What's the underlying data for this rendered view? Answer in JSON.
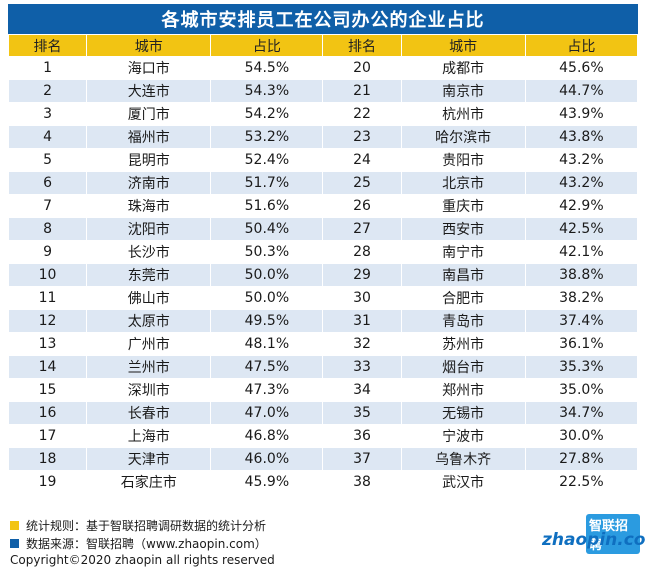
{
  "title": "各城市安排员工在公司办公的企业占比",
  "headers": {
    "rank": "排名",
    "city": "城市",
    "share": "占比"
  },
  "chart_data": {
    "type": "table",
    "title": "各城市安排员工在公司办公的企业占比",
    "columns": [
      "排名",
      "城市",
      "占比"
    ],
    "left_rows": [
      {
        "rank": "1",
        "city": "海口市",
        "share": "54.5%"
      },
      {
        "rank": "2",
        "city": "大连市",
        "share": "54.3%"
      },
      {
        "rank": "3",
        "city": "厦门市",
        "share": "54.2%"
      },
      {
        "rank": "4",
        "city": "福州市",
        "share": "53.2%"
      },
      {
        "rank": "5",
        "city": "昆明市",
        "share": "52.4%"
      },
      {
        "rank": "6",
        "city": "济南市",
        "share": "51.7%"
      },
      {
        "rank": "7",
        "city": "珠海市",
        "share": "51.6%"
      },
      {
        "rank": "8",
        "city": "沈阳市",
        "share": "50.4%"
      },
      {
        "rank": "9",
        "city": "长沙市",
        "share": "50.3%"
      },
      {
        "rank": "10",
        "city": "东莞市",
        "share": "50.0%"
      },
      {
        "rank": "11",
        "city": "佛山市",
        "share": "50.0%"
      },
      {
        "rank": "12",
        "city": "太原市",
        "share": "49.5%"
      },
      {
        "rank": "13",
        "city": "广州市",
        "share": "48.1%"
      },
      {
        "rank": "14",
        "city": "兰州市",
        "share": "47.5%"
      },
      {
        "rank": "15",
        "city": "深圳市",
        "share": "47.3%"
      },
      {
        "rank": "16",
        "city": "长春市",
        "share": "47.0%"
      },
      {
        "rank": "17",
        "city": "上海市",
        "share": "46.8%"
      },
      {
        "rank": "18",
        "city": "天津市",
        "share": "46.0%"
      },
      {
        "rank": "19",
        "city": "石家庄市",
        "share": "45.9%"
      }
    ],
    "right_rows": [
      {
        "rank": "20",
        "city": "成都市",
        "share": "45.6%"
      },
      {
        "rank": "21",
        "city": "南京市",
        "share": "44.7%"
      },
      {
        "rank": "22",
        "city": "杭州市",
        "share": "43.9%"
      },
      {
        "rank": "23",
        "city": "哈尔滨市",
        "share": "43.8%"
      },
      {
        "rank": "24",
        "city": "贵阳市",
        "share": "43.2%"
      },
      {
        "rank": "25",
        "city": "北京市",
        "share": "43.2%"
      },
      {
        "rank": "26",
        "city": "重庆市",
        "share": "42.9%"
      },
      {
        "rank": "27",
        "city": "西安市",
        "share": "42.5%"
      },
      {
        "rank": "28",
        "city": "南宁市",
        "share": "42.1%"
      },
      {
        "rank": "29",
        "city": "南昌市",
        "share": "38.8%"
      },
      {
        "rank": "30",
        "city": "合肥市",
        "share": "38.2%"
      },
      {
        "rank": "31",
        "city": "青岛市",
        "share": "37.4%"
      },
      {
        "rank": "32",
        "city": "苏州市",
        "share": "36.1%"
      },
      {
        "rank": "33",
        "city": "烟台市",
        "share": "35.3%"
      },
      {
        "rank": "34",
        "city": "郑州市",
        "share": "35.0%"
      },
      {
        "rank": "35",
        "city": "无锡市",
        "share": "34.7%"
      },
      {
        "rank": "36",
        "city": "宁波市",
        "share": "30.0%"
      },
      {
        "rank": "37",
        "city": "乌鲁木齐",
        "share": "27.8%"
      },
      {
        "rank": "38",
        "city": "武汉市",
        "share": "22.5%"
      }
    ]
  },
  "footer": {
    "note1": "统计规则：基于智联招聘调研数据的统计分析",
    "note2": "数据来源：智联招聘（www.zhaopin.com）",
    "copyright": "Copyright©2020 zhaopin all rights reserved"
  },
  "logo": {
    "cn": "智联招聘",
    "en": "zhaopin.com"
  },
  "colors": {
    "title_bg": "#0f5fa8",
    "header_bg": "#f2c413",
    "stripe": "#dde7f3"
  }
}
